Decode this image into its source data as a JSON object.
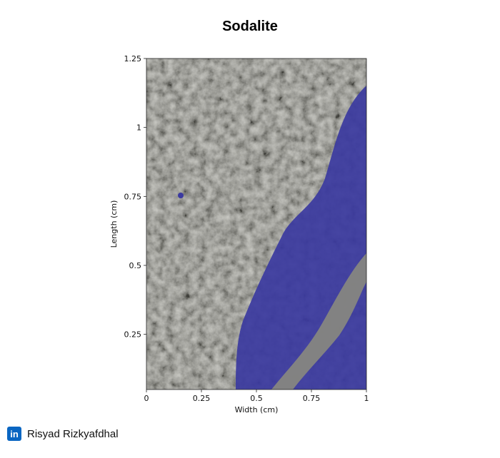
{
  "title": "Sodalite",
  "image": {
    "description_icon": "mineral-photo",
    "colors": {
      "gray": "#8a8a7e",
      "blue": "#3b3aa0",
      "dark": "#3c3c36"
    }
  },
  "axes": {
    "xlabel": "Width (cm)",
    "ylabel": "Length (cm)",
    "xlim": [
      0,
      1
    ],
    "ylim": [
      0.05,
      1.25
    ],
    "xticks": [
      {
        "value": 0,
        "label": "0"
      },
      {
        "value": 0.25,
        "label": "0.25"
      },
      {
        "value": 0.5,
        "label": "0.5"
      },
      {
        "value": 0.75,
        "label": "0.75"
      },
      {
        "value": 1,
        "label": "1"
      }
    ],
    "yticks": [
      {
        "value": 0.25,
        "label": "0.25"
      },
      {
        "value": 0.5,
        "label": "0.5"
      },
      {
        "value": 0.75,
        "label": "0.75"
      },
      {
        "value": 1,
        "label": "1"
      },
      {
        "value": 1.25,
        "label": "1.25"
      }
    ]
  },
  "footer": {
    "icon": "linkedin-icon",
    "icon_text": "in",
    "author": "Risyad Rizkyafdhal"
  }
}
